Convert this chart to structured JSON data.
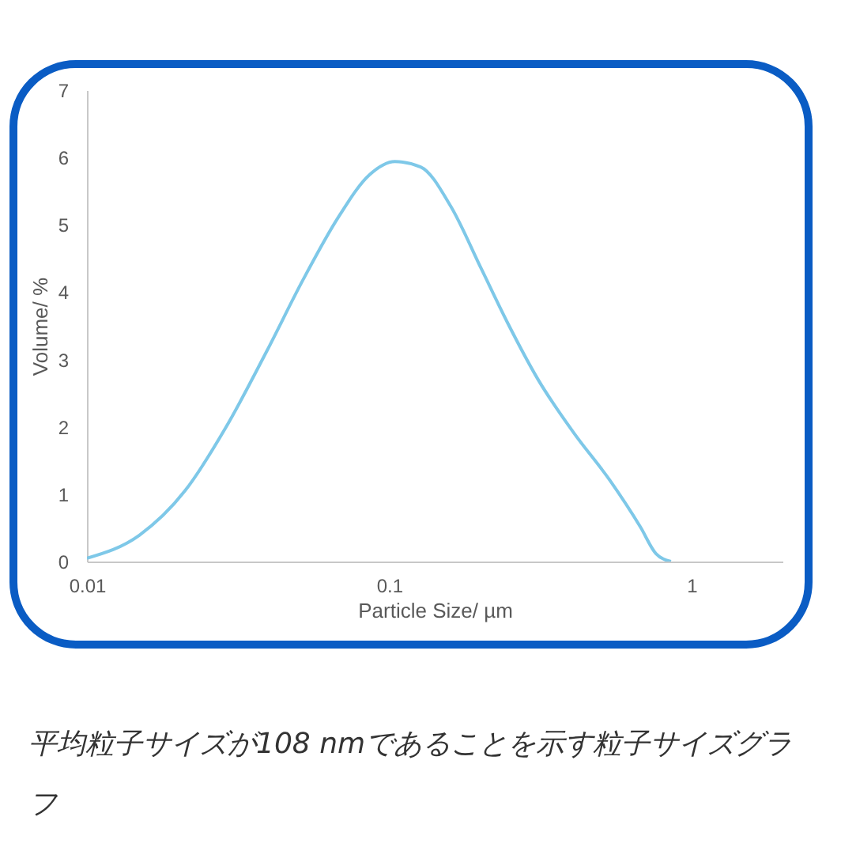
{
  "chart_data": {
    "type": "line",
    "xlabel": "Particle Size/ µm",
    "ylabel": "Volume/ %",
    "log": "x",
    "x": [
      0.01,
      0.0149,
      0.0211,
      0.0288,
      0.0394,
      0.0518,
      0.068,
      0.0859,
      0.1044,
      0.127,
      0.16,
      0.202,
      0.246,
      0.311,
      0.408,
      0.536,
      0.678,
      0.762,
      0.855
    ],
    "series": [
      {
        "color": "#7ec8e8",
        "values": [
          0.05,
          0.39,
          1.05,
          1.99,
          3.13,
          4.18,
          5.12,
          5.74,
          5.94,
          5.86,
          5.27,
          4.34,
          3.55,
          2.7,
          1.91,
          1.21,
          0.51,
          0.12,
          0
        ]
      }
    ],
    "xlim": [
      0.01,
      2
    ],
    "xticks": [
      0.01,
      0.1,
      1
    ],
    "ylim": [
      0,
      7
    ],
    "yticks": [
      0,
      1,
      2,
      3,
      4,
      5,
      6,
      7
    ],
    "grid": false,
    "marker": "none",
    "line_style": "solid",
    "annotations": [
      "平均粒子サイズが108 nmであることを示す粒子サイズグラフ"
    ]
  }
}
